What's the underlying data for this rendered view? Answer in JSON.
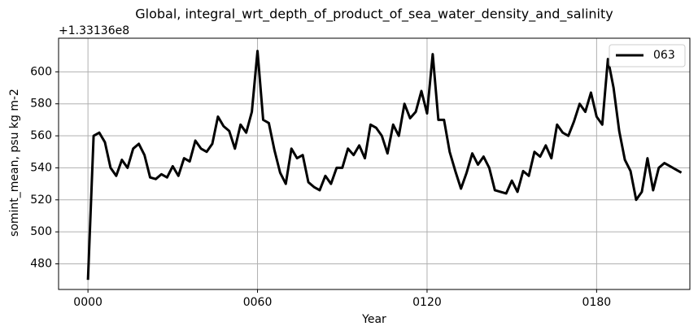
{
  "chart_data": {
    "type": "line",
    "title": "Global, integral_wrt_depth_of_product_of_sea_water_density_and_salinity",
    "y_offset_label": "+1.33136e8",
    "xlabel": "Year",
    "ylabel": "somint_mean, psu kg m-2",
    "x": [
      0,
      2,
      4,
      6,
      8,
      10,
      12,
      14,
      16,
      18,
      20,
      22,
      24,
      26,
      28,
      30,
      32,
      34,
      36,
      38,
      40,
      42,
      44,
      46,
      48,
      50,
      52,
      54,
      56,
      58,
      60,
      62,
      64,
      66,
      68,
      70,
      72,
      74,
      76,
      78,
      80,
      82,
      84,
      86,
      88,
      90,
      92,
      94,
      96,
      98,
      100,
      102,
      104,
      106,
      108,
      110,
      112,
      114,
      116,
      118,
      120,
      122,
      124,
      126,
      128,
      130,
      132,
      134,
      136,
      138,
      140,
      142,
      144,
      146,
      148,
      150,
      152,
      154,
      156,
      158,
      160,
      162,
      164,
      166,
      168,
      170,
      172,
      174,
      176,
      178,
      180,
      182,
      184,
      186,
      188,
      190,
      192,
      194,
      196,
      198,
      200,
      202,
      204,
      206,
      208,
      210
    ],
    "series": [
      {
        "name": "063",
        "color": "#000000",
        "values": [
          470,
          560,
          562,
          556,
          540,
          535,
          545,
          540,
          552,
          555,
          548,
          534,
          533,
          536,
          534,
          541,
          535,
          546,
          544,
          557,
          552,
          550,
          555,
          572,
          566,
          563,
          552,
          567,
          562,
          575,
          613,
          570,
          568,
          551,
          537,
          530,
          552,
          546,
          548,
          531,
          528,
          526,
          535,
          530,
          540,
          540,
          552,
          548,
          554,
          546,
          567,
          565,
          560,
          549,
          567,
          560,
          580,
          571,
          575,
          588,
          574,
          611,
          570,
          570,
          550,
          538,
          527,
          537,
          549,
          542,
          547,
          540,
          526,
          525,
          524,
          532,
          525,
          538,
          535,
          550,
          547,
          554,
          546,
          567,
          562,
          560,
          569,
          580,
          575,
          587,
          572,
          567,
          608,
          590,
          563,
          545,
          538,
          520,
          525,
          546,
          526,
          540,
          543,
          541,
          539,
          537
        ]
      }
    ],
    "xlim": [
      -10.4,
      213
    ],
    "ylim": [
      464,
      621
    ],
    "xticks": [
      {
        "value": 0,
        "label": "0000"
      },
      {
        "value": 60,
        "label": "0060"
      },
      {
        "value": 120,
        "label": "0120"
      },
      {
        "value": 180,
        "label": "0180"
      }
    ],
    "yticks": [
      480,
      500,
      520,
      540,
      560,
      580,
      600
    ],
    "grid": true,
    "legend": "upper right"
  }
}
